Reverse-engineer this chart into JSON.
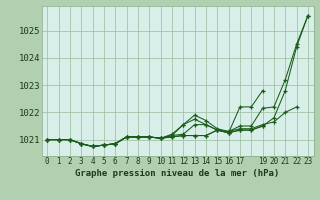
{
  "bg_color": "#b0d0b0",
  "plot_bg_color": "#d8eee8",
  "line_color": "#1a5c1a",
  "grid_color": "#99bb99",
  "title": "Graphe pression niveau de la mer (hPa)",
  "ylim": [
    1020.4,
    1025.9
  ],
  "yticks": [
    1021,
    1022,
    1023,
    1024,
    1025
  ],
  "xlim": [
    -0.5,
    23.5
  ],
  "series": [
    [
      1021.0,
      1021.0,
      1021.0,
      1020.85,
      1020.75,
      1020.8,
      1020.85,
      1021.1,
      1021.1,
      1021.1,
      1021.05,
      1021.1,
      1021.15,
      1021.15,
      1021.15,
      1021.35,
      1021.25,
      1021.35,
      1021.35,
      1021.5,
      1021.8,
      1022.8,
      1024.4,
      1025.55
    ],
    [
      1021.0,
      1021.0,
      1021.0,
      1020.85,
      1020.75,
      1020.8,
      1020.85,
      1021.1,
      1021.1,
      1021.1,
      1021.05,
      1021.15,
      1021.55,
      1021.75,
      1021.55,
      1021.35,
      1021.3,
      1021.5,
      1021.5,
      1022.15,
      1022.2,
      1023.2,
      1024.5,
      1025.55
    ],
    [
      1021.0,
      1021.0,
      1021.0,
      1020.85,
      1020.75,
      1020.8,
      1020.85,
      1021.1,
      1021.1,
      1021.1,
      1021.05,
      1021.2,
      1021.55,
      1021.9,
      1021.7,
      1021.4,
      1021.3,
      1021.4,
      1021.4,
      1021.55,
      1021.65,
      1022.0,
      1022.2,
      null
    ],
    [
      1021.0,
      1021.0,
      1021.0,
      1020.85,
      1020.75,
      1020.8,
      1020.85,
      1021.1,
      1021.1,
      1021.1,
      1021.05,
      1021.15,
      1021.2,
      1021.55,
      1021.55,
      1021.35,
      1021.25,
      1022.2,
      1022.2,
      1022.8,
      null,
      null,
      null,
      null
    ],
    [
      1021.0,
      1021.0,
      1021.0,
      1020.85,
      1020.75,
      1020.8,
      1020.85,
      1021.1,
      1021.1,
      1021.1,
      1021.05,
      1021.1,
      1021.15,
      1021.15,
      1021.15,
      1021.35,
      1021.25,
      1021.35,
      1021.35,
      1021.5,
      null,
      null,
      null,
      null
    ]
  ]
}
